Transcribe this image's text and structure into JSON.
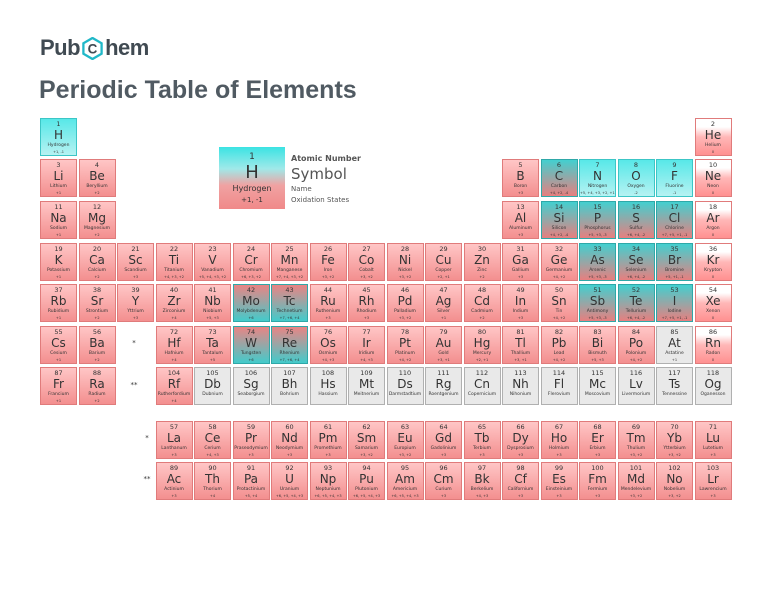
{
  "logo": {
    "left": "Pub",
    "right": "hem",
    "ring_letter": "C"
  },
  "page_title": "Periodic Table of Elements",
  "legend": {
    "number": "1",
    "symbol": "H",
    "name": "Hydrogen",
    "oxidation": "+1, -1",
    "key_number": "Atomic Number",
    "key_symbol": "Symbol",
    "key_name": "Name",
    "key_oxidation": "Oxidation States"
  },
  "series_markers": {
    "lanthanide": "*",
    "actinide": "**"
  },
  "state_colors": {
    "solid": "#f5a3a3",
    "liquid": "#ff9e9e",
    "gas": "#5fe8e8",
    "unknown": "#e9e9e9"
  },
  "elements": [
    {
      "n": 1,
      "s": "H",
      "nm": "Hydrogen",
      "o": "+1, -1",
      "r": 1,
      "c": 1,
      "st": "g"
    },
    {
      "n": 2,
      "s": "He",
      "nm": "Helium",
      "o": "0",
      "r": 1,
      "c": 18,
      "st": "l"
    },
    {
      "n": 3,
      "s": "Li",
      "nm": "Lithium",
      "o": "+1",
      "r": 2,
      "c": 1,
      "st": "s"
    },
    {
      "n": 4,
      "s": "Be",
      "nm": "Beryllium",
      "o": "+2",
      "r": 2,
      "c": 2,
      "st": "s"
    },
    {
      "n": 5,
      "s": "B",
      "nm": "Boron",
      "o": "+3",
      "r": 2,
      "c": 13,
      "st": "s"
    },
    {
      "n": 6,
      "s": "C",
      "nm": "Carbon",
      "o": "+4, +2, -4",
      "r": 2,
      "c": 14,
      "st": "gs"
    },
    {
      "n": 7,
      "s": "N",
      "nm": "Nitrogen",
      "o": "+5, +4, +3, +2, +1, -1, -2, -3",
      "r": 2,
      "c": 15,
      "st": "g"
    },
    {
      "n": 8,
      "s": "O",
      "nm": "Oxygen",
      "o": "-2",
      "r": 2,
      "c": 16,
      "st": "g"
    },
    {
      "n": 9,
      "s": "F",
      "nm": "Fluorine",
      "o": "-1",
      "r": 2,
      "c": 17,
      "st": "g"
    },
    {
      "n": 10,
      "s": "Ne",
      "nm": "Neon",
      "o": "0",
      "r": 2,
      "c": 18,
      "st": "l"
    },
    {
      "n": 11,
      "s": "Na",
      "nm": "Sodium",
      "o": "+1",
      "r": 3,
      "c": 1,
      "st": "s"
    },
    {
      "n": 12,
      "s": "Mg",
      "nm": "Magnesium",
      "o": "+2",
      "r": 3,
      "c": 2,
      "st": "s"
    },
    {
      "n": 13,
      "s": "Al",
      "nm": "Aluminum",
      "o": "+3",
      "r": 3,
      "c": 13,
      "st": "s"
    },
    {
      "n": 14,
      "s": "Si",
      "nm": "Silicon",
      "o": "+4, +2, -4",
      "r": 3,
      "c": 14,
      "st": "gs"
    },
    {
      "n": 15,
      "s": "P",
      "nm": "Phosphorus",
      "o": "+5, +3, -3",
      "r": 3,
      "c": 15,
      "st": "gs"
    },
    {
      "n": 16,
      "s": "S",
      "nm": "Sulfur",
      "o": "+6, +4, -2",
      "r": 3,
      "c": 16,
      "st": "gs"
    },
    {
      "n": 17,
      "s": "Cl",
      "nm": "Chlorine",
      "o": "+7, +5, +1, -1",
      "r": 3,
      "c": 17,
      "st": "gs"
    },
    {
      "n": 18,
      "s": "Ar",
      "nm": "Argon",
      "o": "0",
      "r": 3,
      "c": 18,
      "st": "l"
    },
    {
      "n": 19,
      "s": "K",
      "nm": "Potassium",
      "o": "+1",
      "r": 4,
      "c": 1,
      "st": "s"
    },
    {
      "n": 20,
      "s": "Ca",
      "nm": "Calcium",
      "o": "+2",
      "r": 4,
      "c": 2,
      "st": "s"
    },
    {
      "n": 21,
      "s": "Sc",
      "nm": "Scandium",
      "o": "+3",
      "r": 4,
      "c": 3,
      "st": "s"
    },
    {
      "n": 22,
      "s": "Ti",
      "nm": "Titanium",
      "o": "+4, +3, +2",
      "r": 4,
      "c": 4,
      "st": "s"
    },
    {
      "n": 23,
      "s": "V",
      "nm": "Vanadium",
      "o": "+5, +4, +3, +2",
      "r": 4,
      "c": 5,
      "st": "s"
    },
    {
      "n": 24,
      "s": "Cr",
      "nm": "Chromium",
      "o": "+6, +3, +2",
      "r": 4,
      "c": 6,
      "st": "s"
    },
    {
      "n": 25,
      "s": "Mn",
      "nm": "Manganese",
      "o": "+7, +4, +3, +2",
      "r": 4,
      "c": 7,
      "st": "s"
    },
    {
      "n": 26,
      "s": "Fe",
      "nm": "Iron",
      "o": "+3, +2",
      "r": 4,
      "c": 8,
      "st": "s"
    },
    {
      "n": 27,
      "s": "Co",
      "nm": "Cobalt",
      "o": "+3, +2",
      "r": 4,
      "c": 9,
      "st": "s"
    },
    {
      "n": 28,
      "s": "Ni",
      "nm": "Nickel",
      "o": "+3, +2",
      "r": 4,
      "c": 10,
      "st": "s"
    },
    {
      "n": 29,
      "s": "Cu",
      "nm": "Copper",
      "o": "+2, +1",
      "r": 4,
      "c": 11,
      "st": "s"
    },
    {
      "n": 30,
      "s": "Zn",
      "nm": "Zinc",
      "o": "+2",
      "r": 4,
      "c": 12,
      "st": "s"
    },
    {
      "n": 31,
      "s": "Ga",
      "nm": "Gallium",
      "o": "+3",
      "r": 4,
      "c": 13,
      "st": "s"
    },
    {
      "n": 32,
      "s": "Ge",
      "nm": "Germanium",
      "o": "+4, +2",
      "r": 4,
      "c": 14,
      "st": "s"
    },
    {
      "n": 33,
      "s": "As",
      "nm": "Arsenic",
      "o": "+5, +3, -3",
      "r": 4,
      "c": 15,
      "st": "gs"
    },
    {
      "n": 34,
      "s": "Se",
      "nm": "Selenium",
      "o": "+6, +4, -2",
      "r": 4,
      "c": 16,
      "st": "gs"
    },
    {
      "n": 35,
      "s": "Br",
      "nm": "Bromine",
      "o": "+5, +1, -1",
      "r": 4,
      "c": 17,
      "st": "gs"
    },
    {
      "n": 36,
      "s": "Kr",
      "nm": "Krypton",
      "o": "0",
      "r": 4,
      "c": 18,
      "st": "l"
    },
    {
      "n": 37,
      "s": "Rb",
      "nm": "Rubidium",
      "o": "+1",
      "r": 5,
      "c": 1,
      "st": "s"
    },
    {
      "n": 38,
      "s": "Sr",
      "nm": "Strontium",
      "o": "+2",
      "r": 5,
      "c": 2,
      "st": "s"
    },
    {
      "n": 39,
      "s": "Y",
      "nm": "Yttrium",
      "o": "+3",
      "r": 5,
      "c": 3,
      "st": "s"
    },
    {
      "n": 40,
      "s": "Zr",
      "nm": "Zirconium",
      "o": "+4",
      "r": 5,
      "c": 4,
      "st": "s"
    },
    {
      "n": 41,
      "s": "Nb",
      "nm": "Niobium",
      "o": "+5, +3",
      "r": 5,
      "c": 5,
      "st": "s"
    },
    {
      "n": 42,
      "s": "Mo",
      "nm": "Molybdenum",
      "o": "+6",
      "r": 5,
      "c": 6,
      "st": "sg"
    },
    {
      "n": 43,
      "s": "Tc",
      "nm": "Technetium",
      "o": "+7, +6, +4",
      "r": 5,
      "c": 7,
      "st": "sg"
    },
    {
      "n": 44,
      "s": "Ru",
      "nm": "Ruthenium",
      "o": "+3",
      "r": 5,
      "c": 8,
      "st": "s"
    },
    {
      "n": 45,
      "s": "Rh",
      "nm": "Rhodium",
      "o": "+3",
      "r": 5,
      "c": 9,
      "st": "s"
    },
    {
      "n": 46,
      "s": "Pd",
      "nm": "Palladium",
      "o": "+3, +2",
      "r": 5,
      "c": 10,
      "st": "s"
    },
    {
      "n": 47,
      "s": "Ag",
      "nm": "Silver",
      "o": "+1",
      "r": 5,
      "c": 11,
      "st": "s"
    },
    {
      "n": 48,
      "s": "Cd",
      "nm": "Cadmium",
      "o": "+2",
      "r": 5,
      "c": 12,
      "st": "s"
    },
    {
      "n": 49,
      "s": "In",
      "nm": "Indium",
      "o": "+3",
      "r": 5,
      "c": 13,
      "st": "s"
    },
    {
      "n": 50,
      "s": "Sn",
      "nm": "Tin",
      "o": "+4, +2",
      "r": 5,
      "c": 14,
      "st": "s"
    },
    {
      "n": 51,
      "s": "Sb",
      "nm": "Antimony",
      "o": "+5, +3, -3",
      "r": 5,
      "c": 15,
      "st": "gs"
    },
    {
      "n": 52,
      "s": "Te",
      "nm": "Tellurium",
      "o": "+6, +4, -2",
      "r": 5,
      "c": 16,
      "st": "gs"
    },
    {
      "n": 53,
      "s": "I",
      "nm": "Iodine",
      "o": "+7, +5, +1, -1",
      "r": 5,
      "c": 17,
      "st": "gs"
    },
    {
      "n": 54,
      "s": "Xe",
      "nm": "Xenon",
      "o": "0",
      "r": 5,
      "c": 18,
      "st": "l"
    },
    {
      "n": 55,
      "s": "Cs",
      "nm": "Cesium",
      "o": "+1",
      "r": 6,
      "c": 1,
      "st": "s"
    },
    {
      "n": 56,
      "s": "Ba",
      "nm": "Barium",
      "o": "+2",
      "r": 6,
      "c": 2,
      "st": "s"
    },
    {
      "n": 72,
      "s": "Hf",
      "nm": "Hafnium",
      "o": "+4",
      "r": 6,
      "c": 4,
      "st": "s"
    },
    {
      "n": 73,
      "s": "Ta",
      "nm": "Tantalum",
      "o": "+5",
      "r": 6,
      "c": 5,
      "st": "s"
    },
    {
      "n": 74,
      "s": "W",
      "nm": "Tungsten",
      "o": "+6",
      "r": 6,
      "c": 6,
      "st": "sg"
    },
    {
      "n": 75,
      "s": "Re",
      "nm": "Rhenium",
      "o": "+7, +6, +4",
      "r": 6,
      "c": 7,
      "st": "sg"
    },
    {
      "n": 76,
      "s": "Os",
      "nm": "Osmium",
      "o": "+4, +3",
      "r": 6,
      "c": 8,
      "st": "s"
    },
    {
      "n": 77,
      "s": "Ir",
      "nm": "Iridium",
      "o": "+4, +3",
      "r": 6,
      "c": 9,
      "st": "s"
    },
    {
      "n": 78,
      "s": "Pt",
      "nm": "Platinum",
      "o": "+4, +2",
      "r": 6,
      "c": 10,
      "st": "s"
    },
    {
      "n": 79,
      "s": "Au",
      "nm": "Gold",
      "o": "+3, +1",
      "r": 6,
      "c": 11,
      "st": "s"
    },
    {
      "n": 80,
      "s": "Hg",
      "nm": "Mercury",
      "o": "+2, +1",
      "r": 6,
      "c": 12,
      "st": "s"
    },
    {
      "n": 81,
      "s": "Tl",
      "nm": "Thallium",
      "o": "+3, +1",
      "r": 6,
      "c": 13,
      "st": "s"
    },
    {
      "n": 82,
      "s": "Pb",
      "nm": "Lead",
      "o": "+4, +2",
      "r": 6,
      "c": 14,
      "st": "s"
    },
    {
      "n": 83,
      "s": "Bi",
      "nm": "Bismuth",
      "o": "+5, +3",
      "r": 6,
      "c": 15,
      "st": "s"
    },
    {
      "n": 84,
      "s": "Po",
      "nm": "Polonium",
      "o": "+4, +2",
      "r": 6,
      "c": 16,
      "st": "s"
    },
    {
      "n": 85,
      "s": "At",
      "nm": "Astatine",
      "o": "+1",
      "r": 6,
      "c": 17,
      "st": "u"
    },
    {
      "n": 86,
      "s": "Rn",
      "nm": "Radon",
      "o": "0",
      "r": 6,
      "c": 18,
      "st": "l"
    },
    {
      "n": 87,
      "s": "Fr",
      "nm": "Francium",
      "o": "+1",
      "r": 7,
      "c": 1,
      "st": "s"
    },
    {
      "n": 88,
      "s": "Ra",
      "nm": "Radium",
      "o": "+2",
      "r": 7,
      "c": 2,
      "st": "s"
    },
    {
      "n": 104,
      "s": "Rf",
      "nm": "Rutherfordium",
      "o": "+4",
      "r": 7,
      "c": 4,
      "st": "s"
    },
    {
      "n": 105,
      "s": "Db",
      "nm": "Dubnium",
      "o": "",
      "r": 7,
      "c": 5,
      "st": "u"
    },
    {
      "n": 106,
      "s": "Sg",
      "nm": "Seaborgium",
      "o": "",
      "r": 7,
      "c": 6,
      "st": "u"
    },
    {
      "n": 107,
      "s": "Bh",
      "nm": "Bohrium",
      "o": "",
      "r": 7,
      "c": 7,
      "st": "u"
    },
    {
      "n": 108,
      "s": "Hs",
      "nm": "Hassium",
      "o": "",
      "r": 7,
      "c": 8,
      "st": "u"
    },
    {
      "n": 109,
      "s": "Mt",
      "nm": "Meitnerium",
      "o": "",
      "r": 7,
      "c": 9,
      "st": "u"
    },
    {
      "n": 110,
      "s": "Ds",
      "nm": "Darmstadtium",
      "o": "",
      "r": 7,
      "c": 10,
      "st": "u"
    },
    {
      "n": 111,
      "s": "Rg",
      "nm": "Roentgenium",
      "o": "",
      "r": 7,
      "c": 11,
      "st": "u"
    },
    {
      "n": 112,
      "s": "Cn",
      "nm": "Copernicium",
      "o": "",
      "r": 7,
      "c": 12,
      "st": "u"
    },
    {
      "n": 113,
      "s": "Nh",
      "nm": "Nihonium",
      "o": "",
      "r": 7,
      "c": 13,
      "st": "u"
    },
    {
      "n": 114,
      "s": "Fl",
      "nm": "Flerovium",
      "o": "",
      "r": 7,
      "c": 14,
      "st": "u"
    },
    {
      "n": 115,
      "s": "Mc",
      "nm": "Moscovium",
      "o": "",
      "r": 7,
      "c": 15,
      "st": "u"
    },
    {
      "n": 116,
      "s": "Lv",
      "nm": "Livermorium",
      "o": "",
      "r": 7,
      "c": 16,
      "st": "u"
    },
    {
      "n": 117,
      "s": "Ts",
      "nm": "Tennessine",
      "o": "",
      "r": 7,
      "c": 17,
      "st": "u"
    },
    {
      "n": 118,
      "s": "Og",
      "nm": "Oganesson",
      "o": "",
      "r": 7,
      "c": 18,
      "st": "u"
    },
    {
      "n": 57,
      "s": "La",
      "nm": "Lanthanum",
      "o": "+3",
      "r": 9,
      "c": 4,
      "st": "s"
    },
    {
      "n": 58,
      "s": "Ce",
      "nm": "Cerium",
      "o": "+4, +3",
      "r": 9,
      "c": 5,
      "st": "s"
    },
    {
      "n": 59,
      "s": "Pr",
      "nm": "Praseodymium",
      "o": "+3",
      "r": 9,
      "c": 6,
      "st": "s"
    },
    {
      "n": 60,
      "s": "Nd",
      "nm": "Neodymium",
      "o": "+3",
      "r": 9,
      "c": 7,
      "st": "s"
    },
    {
      "n": 61,
      "s": "Pm",
      "nm": "Promethium",
      "o": "+3",
      "r": 9,
      "c": 8,
      "st": "s"
    },
    {
      "n": 62,
      "s": "Sm",
      "nm": "Samarium",
      "o": "+3, +2",
      "r": 9,
      "c": 9,
      "st": "s"
    },
    {
      "n": 63,
      "s": "Eu",
      "nm": "Europium",
      "o": "+3, +2",
      "r": 9,
      "c": 10,
      "st": "s"
    },
    {
      "n": 64,
      "s": "Gd",
      "nm": "Gadolinium",
      "o": "+3",
      "r": 9,
      "c": 11,
      "st": "s"
    },
    {
      "n": 65,
      "s": "Tb",
      "nm": "Terbium",
      "o": "+3",
      "r": 9,
      "c": 12,
      "st": "s"
    },
    {
      "n": 66,
      "s": "Dy",
      "nm": "Dysprosium",
      "o": "+3",
      "r": 9,
      "c": 13,
      "st": "s"
    },
    {
      "n": 67,
      "s": "Ho",
      "nm": "Holmium",
      "o": "+3",
      "r": 9,
      "c": 14,
      "st": "s"
    },
    {
      "n": 68,
      "s": "Er",
      "nm": "Erbium",
      "o": "+3",
      "r": 9,
      "c": 15,
      "st": "s"
    },
    {
      "n": 69,
      "s": "Tm",
      "nm": "Thulium",
      "o": "+3, +2",
      "r": 9,
      "c": 16,
      "st": "s"
    },
    {
      "n": 70,
      "s": "Yb",
      "nm": "Ytterbium",
      "o": "+3, +2",
      "r": 9,
      "c": 17,
      "st": "s"
    },
    {
      "n": 71,
      "s": "Lu",
      "nm": "Lutetium",
      "o": "+3",
      "r": 9,
      "c": 18,
      "st": "s"
    },
    {
      "n": 89,
      "s": "Ac",
      "nm": "Actinium",
      "o": "+3",
      "r": 10,
      "c": 4,
      "st": "s"
    },
    {
      "n": 90,
      "s": "Th",
      "nm": "Thorium",
      "o": "+4",
      "r": 10,
      "c": 5,
      "st": "s"
    },
    {
      "n": 91,
      "s": "Pa",
      "nm": "Protactinium",
      "o": "+5, +4",
      "r": 10,
      "c": 6,
      "st": "s"
    },
    {
      "n": 92,
      "s": "U",
      "nm": "Uranium",
      "o": "+6, +5, +4, +3",
      "r": 10,
      "c": 7,
      "st": "s"
    },
    {
      "n": 93,
      "s": "Np",
      "nm": "Neptunium",
      "o": "+6, +5, +4, +3",
      "r": 10,
      "c": 8,
      "st": "s"
    },
    {
      "n": 94,
      "s": "Pu",
      "nm": "Plutonium",
      "o": "+6, +5, +4, +3",
      "r": 10,
      "c": 9,
      "st": "s"
    },
    {
      "n": 95,
      "s": "Am",
      "nm": "Americium",
      "o": "+6, +5, +4, +3",
      "r": 10,
      "c": 10,
      "st": "s"
    },
    {
      "n": 96,
      "s": "Cm",
      "nm": "Curium",
      "o": "+3",
      "r": 10,
      "c": 11,
      "st": "s"
    },
    {
      "n": 97,
      "s": "Bk",
      "nm": "Berkelium",
      "o": "+4, +3",
      "r": 10,
      "c": 12,
      "st": "s"
    },
    {
      "n": 98,
      "s": "Cf",
      "nm": "Californium",
      "o": "+3",
      "r": 10,
      "c": 13,
      "st": "s"
    },
    {
      "n": 99,
      "s": "Es",
      "nm": "Einsteinium",
      "o": "+3",
      "r": 10,
      "c": 14,
      "st": "s"
    },
    {
      "n": 100,
      "s": "Fm",
      "nm": "Fermium",
      "o": "+3",
      "r": 10,
      "c": 15,
      "st": "s"
    },
    {
      "n": 101,
      "s": "Md",
      "nm": "Mendelevium",
      "o": "+3, +2",
      "r": 10,
      "c": 16,
      "st": "s"
    },
    {
      "n": 102,
      "s": "No",
      "nm": "Nobelium",
      "o": "+3, +2",
      "r": 10,
      "c": 17,
      "st": "s"
    },
    {
      "n": 103,
      "s": "Lr",
      "nm": "Lawrencium",
      "o": "+3",
      "r": 10,
      "c": 18,
      "st": "s"
    }
  ]
}
